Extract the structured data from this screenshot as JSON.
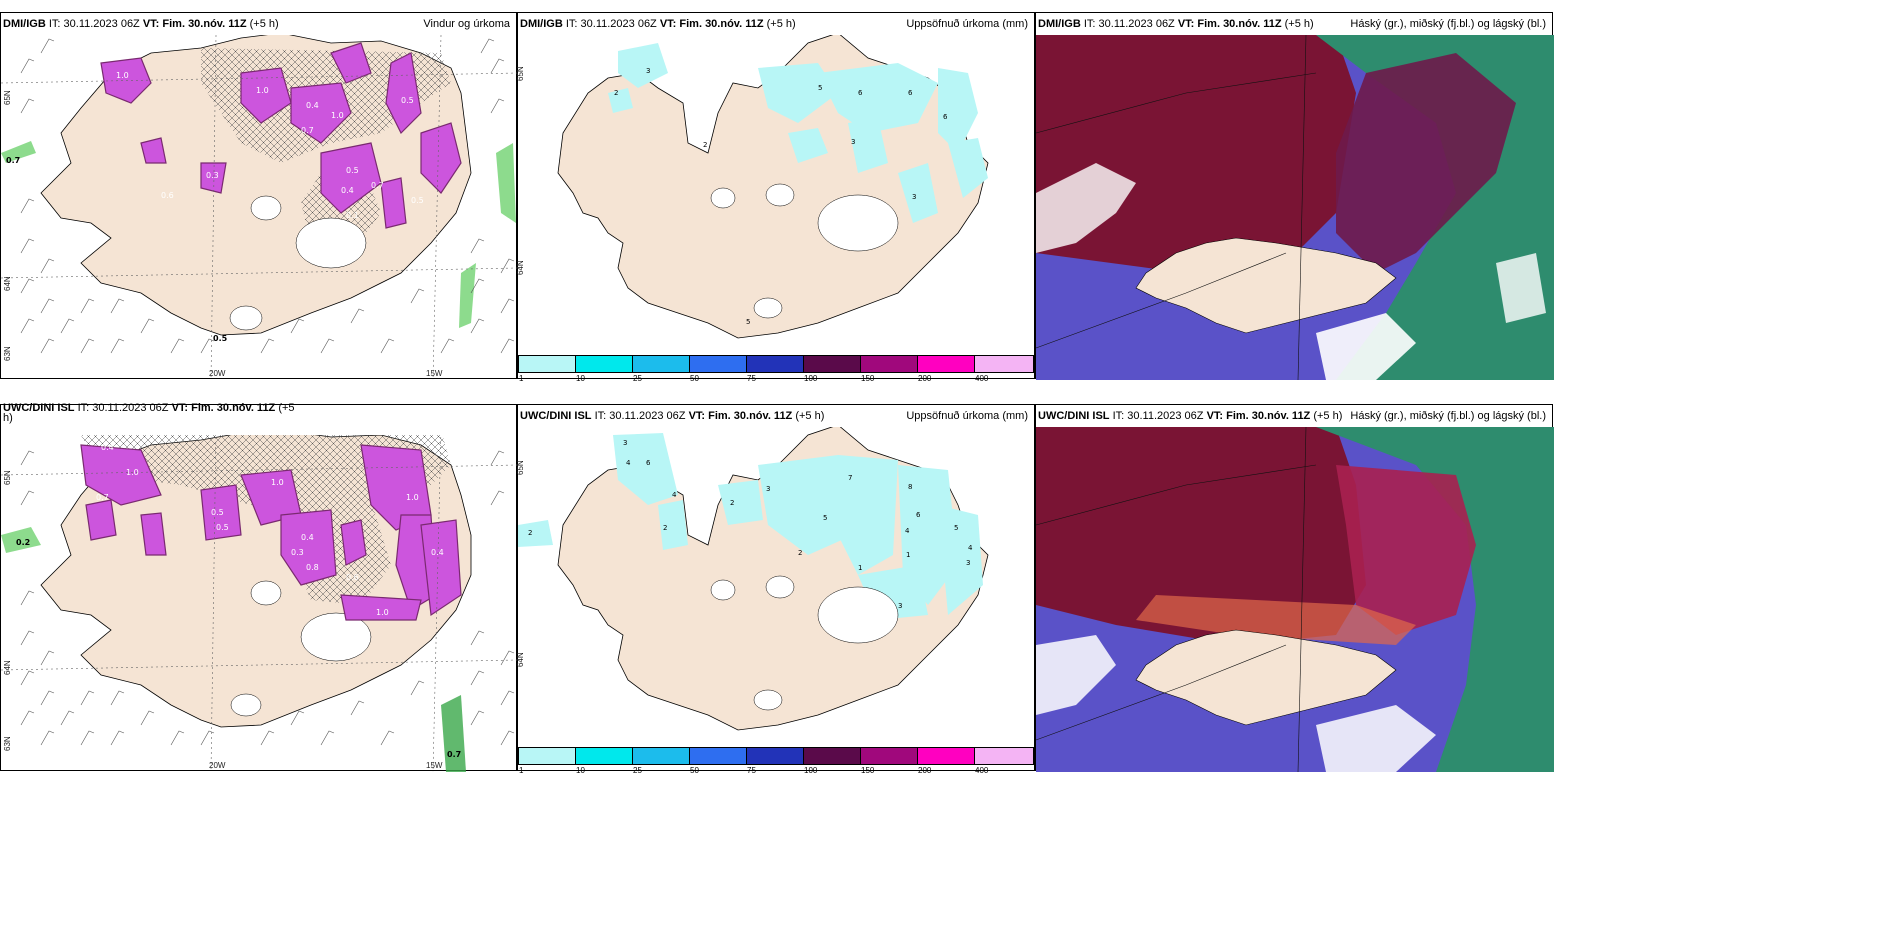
{
  "panels": {
    "p1": {
      "model": "DMI/IGB",
      "it_label": "IT:",
      "it_value": "30.11.2023 06Z",
      "vt_label": "VT: Fim. 30.nóv. 11Z",
      "lead": "(+5 h)",
      "right_title": "Vindur og úrkoma",
      "lat_top": "65N",
      "lat_mid": "64N",
      "lat_bot": "63N",
      "lon_a": "20W",
      "lon_b": "15W",
      "labels": [
        "1.0",
        "1.0",
        "0.4",
        "1.0",
        "0.7",
        "0.5",
        "0.5",
        "0.4",
        "0.7",
        "0.5",
        "0.1",
        "0.6",
        "0.3",
        "0.7",
        "0.5"
      ]
    },
    "p2": {
      "model": "DMI/IGB",
      "it_label": "IT:",
      "it_value": "30.11.2023 06Z",
      "vt_label": "VT: Fim. 30.nóv. 11Z",
      "lead": "(+5 h)",
      "right_title": "Uppsöfnuð úrkoma (mm)",
      "lat_top": "65N",
      "lat_mid": "64N",
      "labels": [
        "3",
        "2",
        "5",
        "6",
        "6",
        "6",
        "3",
        "3",
        "2",
        "5"
      ]
    },
    "p3": {
      "model": "DMI/IGB",
      "it_label": "IT:",
      "it_value": "30.11.2023 06Z",
      "vt_label": "VT: Fim. 30.nóv. 11Z",
      "lead": "(+5 h)",
      "right_title": "Háský (gr.), miðský (fj.bl.) og lágský (bl.)"
    },
    "p4": {
      "model": "UWC/DINI ISL",
      "it_label": "IT:",
      "it_value": "30.11.2023 06Z",
      "vt_label": "VT: Fim. 30.nóv. 11Z",
      "lead": "(+5",
      "lead2": "h)",
      "right_title": "",
      "lat_top": "65N",
      "lat_mid": "64N",
      "lat_bot": "63N",
      "lon_a": "20W",
      "lon_b": "15W",
      "labels": [
        "0.4",
        "1.0",
        "0.7",
        "0.5",
        "0.3",
        "1.0",
        "0.4",
        "1.0",
        "0.8",
        "0.4",
        "0.5",
        "1.0",
        "0.2",
        "0.7",
        "0.6"
      ]
    },
    "p5": {
      "model": "UWC/DINI ISL",
      "it_label": "IT:",
      "it_value": "30.11.2023 06Z",
      "vt_label": "VT: Fim. 30.nóv. 11Z",
      "lead": "(+5 h)",
      "right_title": "Uppsöfnuð úrkoma (mm)",
      "lat_top": "65N",
      "lat_mid": "64N",
      "labels": [
        "3",
        "4",
        "6",
        "4",
        "2",
        "2",
        "3",
        "7",
        "8",
        "6",
        "4",
        "5",
        "2",
        "1",
        "3",
        "4",
        "2",
        "1",
        "5",
        "3"
      ]
    },
    "p6": {
      "model": "UWC/DINI ISL",
      "it_label": "IT:",
      "it_value": "30.11.2023 06Z",
      "vt_label": "VT: Fim. 30.nóv. 11Z",
      "lead": "(+5 h)",
      "right_title": "Háský (gr.), miðský (fj.bl.) og lágský (bl.)"
    }
  },
  "legend": {
    "ticks": [
      "1",
      "10",
      "25",
      "50",
      "75",
      "100",
      "150",
      "200",
      "400"
    ],
    "colors": [
      "#b8f6f6",
      "#00e8ec",
      "#1cbcec",
      "#2e6ef0",
      "#2233b8",
      "#5a0a4a",
      "#a0087c",
      "#ff00c0",
      "#f4b4f4"
    ]
  },
  "colors": {
    "land": "#f5e4d4",
    "wind_precip": "#cc55dd",
    "precip_dark": "#7a2a70",
    "high_cloud": "#2e8c6e",
    "mid_cloud": "#7a1434",
    "low_cloud": "#3a3ab4",
    "green_band": "#5ccc5c"
  }
}
